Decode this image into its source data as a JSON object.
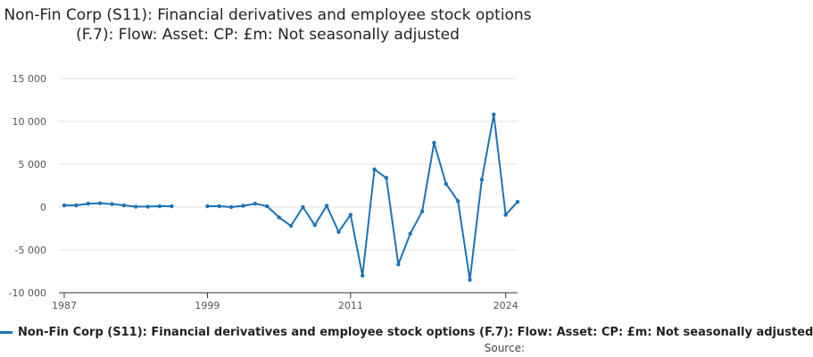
{
  "title": "Non-Fin Corp (S11): Financial derivatives and employee stock options (F.7): Flow: Asset: CP: £m: Not seasonally adjusted",
  "source_label": "Source:",
  "colors": {
    "series": "#1c73b6",
    "grid": "#e0e0e0",
    "axis": "#333333",
    "tick_text": "#555555"
  },
  "chart_data": {
    "type": "line",
    "title": "Non-Fin Corp (S11): Financial derivatives and employee stock options (F.7): Flow: Asset: CP: £m: Not seasonally adjusted",
    "xlabel": "",
    "ylabel": "",
    "xlim": [
      1987,
      2024
    ],
    "ylim": [
      -10000,
      15000
    ],
    "x_ticks": [
      1987,
      1999,
      2011,
      2024
    ],
    "x_tick_labels": [
      "1987",
      "1999",
      "2011",
      "2024"
    ],
    "y_ticks": [
      -10000,
      -5000,
      0,
      5000,
      10000,
      15000
    ],
    "y_tick_labels": [
      "-10 000",
      "-5 000",
      "0",
      "5 000",
      "10 000",
      "15 000"
    ],
    "grid": true,
    "legend_position": "bottom",
    "series": [
      {
        "name": "Non-Fin Corp (S11): Financial derivatives and employee stock options (F.7): Flow: Asset: CP: £m: Not seasonally adjusted",
        "points": [
          [
            1987,
            200
          ],
          [
            1988,
            200
          ],
          [
            1989,
            400
          ],
          [
            1990,
            450
          ],
          [
            1991,
            350
          ],
          [
            1992,
            200
          ],
          [
            1993,
            50
          ],
          [
            1994,
            50
          ],
          [
            1995,
            100
          ],
          [
            1996,
            100
          ],
          [
            1997,
            null
          ],
          [
            1998,
            null
          ],
          [
            1999,
            100
          ],
          [
            2000,
            100
          ],
          [
            2001,
            0
          ],
          [
            2002,
            150
          ],
          [
            2003,
            400
          ],
          [
            2004,
            100
          ],
          [
            2005,
            -1200
          ],
          [
            2006,
            -2200
          ],
          [
            2007,
            0
          ],
          [
            2008,
            -2100
          ],
          [
            2009,
            150
          ],
          [
            2010,
            -2900
          ],
          [
            2011,
            -900
          ],
          [
            2012,
            -8000
          ],
          [
            2013,
            4400
          ],
          [
            2014,
            3400
          ],
          [
            2015,
            -6700
          ],
          [
            2016,
            -3100
          ],
          [
            2017,
            -500
          ],
          [
            2018,
            7500
          ],
          [
            2019,
            2700
          ],
          [
            2020,
            700
          ],
          [
            2021,
            -8500
          ],
          [
            2022,
            3200
          ],
          [
            2023,
            10800
          ],
          [
            2024,
            -900
          ],
          [
            2025,
            600
          ]
        ]
      }
    ]
  }
}
